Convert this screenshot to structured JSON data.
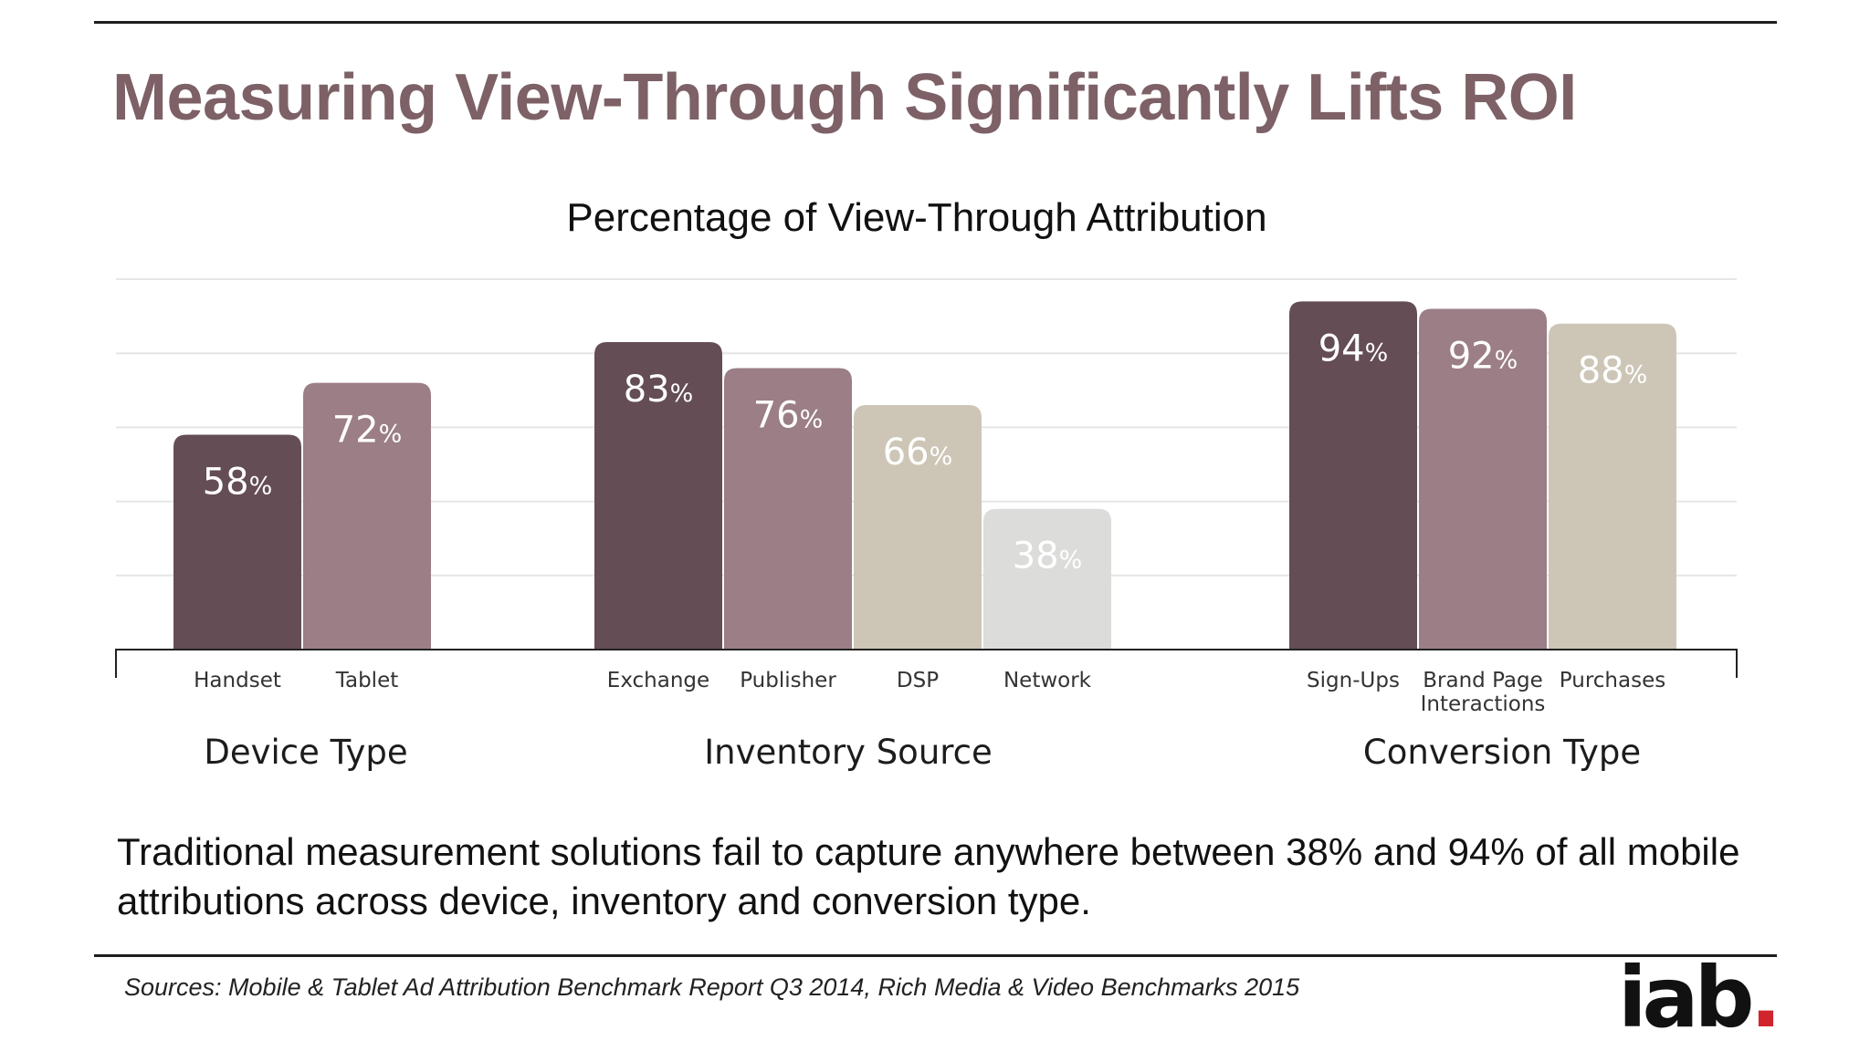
{
  "slide": {
    "title": "Measuring View-Through Significantly Lifts ROI",
    "caption": "Traditional measurement solutions fail to capture anywhere between 38% and 94% of all mobile attributions across device, inventory and conversion type.",
    "source": "Sources: Mobile & Tablet Ad Attribution Benchmark Report Q3 2014, Rich Media & Video Benchmarks 2015",
    "logo_text": "iab",
    "logo_dot": "."
  },
  "colors": {
    "title": "#7d6167",
    "dark": "#644d55",
    "mauve": "#9b7e86",
    "tan": "#cdc6b7",
    "light": "#dcdddb",
    "logo_dot": "#d0252d"
  },
  "chart_data": {
    "type": "bar",
    "title": "Percentage of View-Through Attribution",
    "unit": "%",
    "ylim": [
      0,
      100
    ],
    "grid": true,
    "groups": [
      {
        "name": "Device Type",
        "categories": [
          "Handset",
          "Tablet"
        ],
        "values": [
          58,
          72
        ],
        "colors": [
          "dark",
          "mauve"
        ]
      },
      {
        "name": "Inventory Source",
        "categories": [
          "Exchange",
          "Publisher",
          "DSP",
          "Network"
        ],
        "values": [
          83,
          76,
          66,
          38
        ],
        "colors": [
          "dark",
          "mauve",
          "tan",
          "light"
        ]
      },
      {
        "name": "Conversion Type",
        "categories": [
          "Sign-Ups",
          "Brand Page Interactions",
          "Purchases"
        ],
        "values": [
          94,
          92,
          88
        ],
        "colors": [
          "dark",
          "mauve",
          "tan"
        ]
      }
    ]
  }
}
